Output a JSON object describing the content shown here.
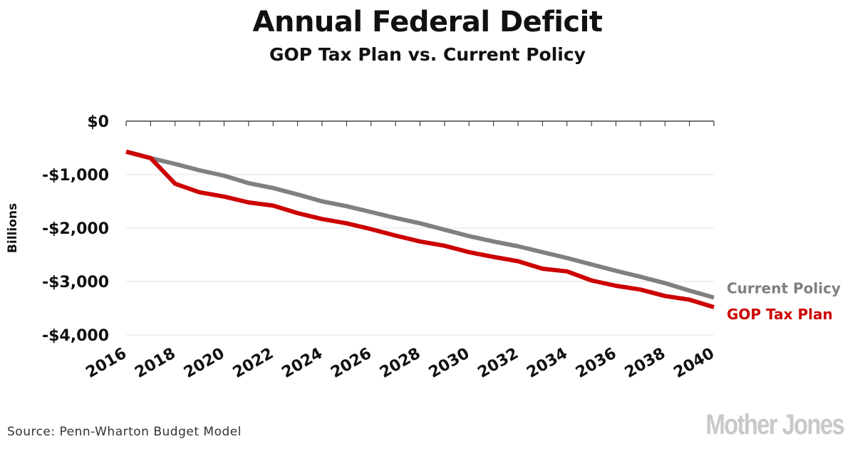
{
  "chart_data": {
    "type": "line",
    "title": "Annual Federal Deficit",
    "subtitle": "GOP Tax Plan vs. Current Policy",
    "ylabel": "Billions",
    "xlabel": "",
    "ylim": [
      -4000,
      0
    ],
    "xlim": [
      2016,
      2040
    ],
    "y_ticks": [
      0,
      -1000,
      -2000,
      -3000,
      -4000
    ],
    "y_tick_labels": [
      "$0",
      "-$1,000",
      "-$2,000",
      "-$3,000",
      "-$4,000"
    ],
    "x_ticks": [
      2016,
      2018,
      2020,
      2022,
      2024,
      2026,
      2028,
      2030,
      2032,
      2034,
      2036,
      2038,
      2040
    ],
    "x_tick_labels": [
      "2016",
      "2018",
      "2020",
      "2022",
      "2024",
      "2026",
      "2028",
      "2030",
      "2032",
      "2034",
      "2036",
      "2038",
      "2040"
    ],
    "grid": "horizontal",
    "legend": "end-of-line labels",
    "x": [
      2016,
      2017,
      2018,
      2019,
      2020,
      2021,
      2022,
      2023,
      2024,
      2025,
      2026,
      2027,
      2028,
      2029,
      2030,
      2031,
      2032,
      2033,
      2034,
      2035,
      2036,
      2037,
      2038,
      2039,
      2040
    ],
    "series": [
      {
        "name": "Current Policy",
        "color": "#808080",
        "values": [
          -570,
          -690,
          -800,
          -920,
          -1020,
          -1160,
          -1250,
          -1370,
          -1500,
          -1590,
          -1700,
          -1810,
          -1910,
          -2030,
          -2150,
          -2250,
          -2340,
          -2450,
          -2560,
          -2680,
          -2800,
          -2910,
          -3030,
          -3170,
          -3300
        ]
      },
      {
        "name": "GOP Tax Plan",
        "color": "#cc0000",
        "values": [
          -570,
          -690,
          -1170,
          -1330,
          -1410,
          -1520,
          -1580,
          -1720,
          -1830,
          -1910,
          -2020,
          -2140,
          -2250,
          -2330,
          -2450,
          -2540,
          -2620,
          -2760,
          -2810,
          -2980,
          -3080,
          -3150,
          -3270,
          -3340,
          -3480
        ]
      }
    ]
  },
  "footer": {
    "source": "Source: Penn-Wharton Budget Model",
    "brand": "Mother Jones"
  }
}
